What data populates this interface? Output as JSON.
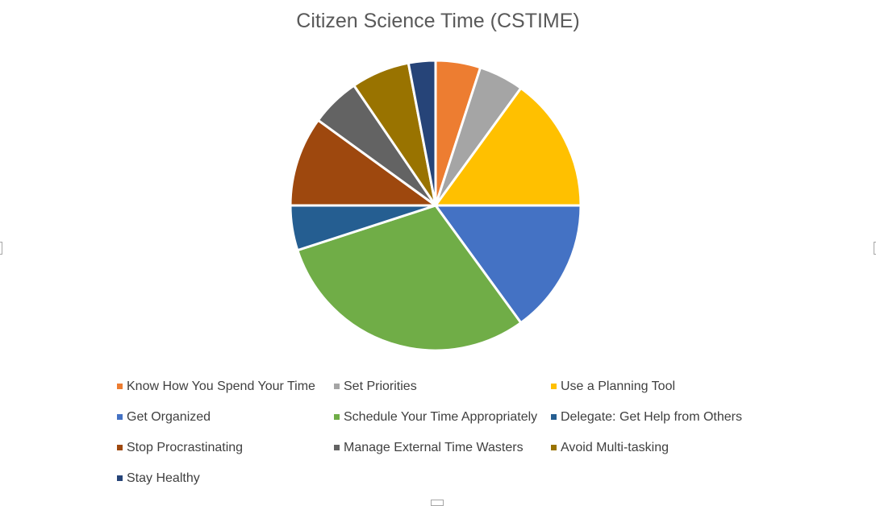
{
  "chart_data": {
    "type": "pie",
    "title": "Citizen Science Time (CSTIME)",
    "legend_position": "bottom",
    "slices": [
      {
        "label": "Know How You Spend Your Time",
        "value": 5.0,
        "color": "#ED7D31"
      },
      {
        "label": "Set Priorities",
        "value": 5.0,
        "color": "#A5A5A5"
      },
      {
        "label": "Use a Planning Tool",
        "value": 15.0,
        "color": "#FFC000"
      },
      {
        "label": "Get Organized",
        "value": 15.0,
        "color": "#4472C4"
      },
      {
        "label": "Schedule Your Time Appropriately",
        "value": 30.0,
        "color": "#70AD47"
      },
      {
        "label": "Delegate: Get Help from Others",
        "value": 5.0,
        "color": "#255E91"
      },
      {
        "label": "Stop Procrastinating",
        "value": 10.0,
        "color": "#9E480E"
      },
      {
        "label": "Manage External Time Wasters",
        "value": 5.5,
        "color": "#636363"
      },
      {
        "label": "Avoid Multi-tasking",
        "value": 6.5,
        "color": "#997300"
      },
      {
        "label": "Stay Healthy",
        "value": 3.0,
        "color": "#264478"
      }
    ]
  }
}
